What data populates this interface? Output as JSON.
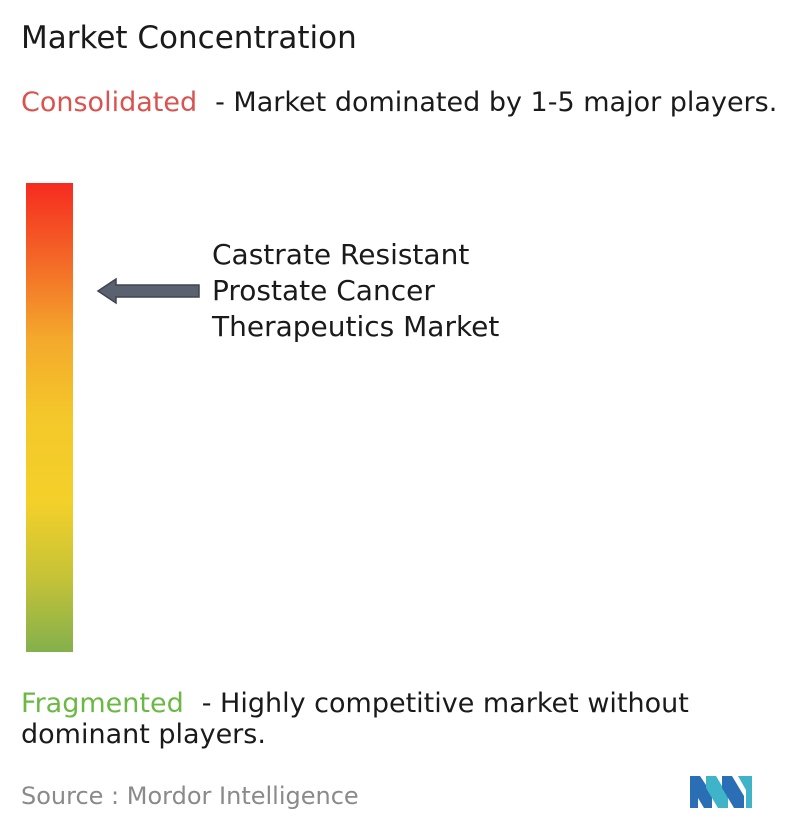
{
  "title": "Market Concentration",
  "consolidated": {
    "label": "Consolidated",
    "description": "- Market dominated by 1-5 major players.",
    "color": "#d9534f"
  },
  "fragmented": {
    "label": "Fragmented",
    "description": "- Highly competitive market without dominant players.",
    "color": "#6cb844"
  },
  "market": {
    "line1": "Castrate Resistant",
    "line2": "Prostate Cancer",
    "line3": "Therapeutics Market",
    "level": 0.2
  },
  "scale": {
    "colors": [
      "#f62b20",
      "#f46a27",
      "#f4a82c",
      "#f4c82a",
      "#f4d02a",
      "#c6c337",
      "#84b04c"
    ]
  },
  "source": "Source :  Mordor Intelligence",
  "logo": {
    "icon": "mordor-intelligence-logo-icon",
    "colors": [
      "#2a6fb5",
      "#3fb3c7"
    ]
  },
  "arrow": {
    "icon": "left-arrow-icon",
    "color": "#5a6270"
  }
}
